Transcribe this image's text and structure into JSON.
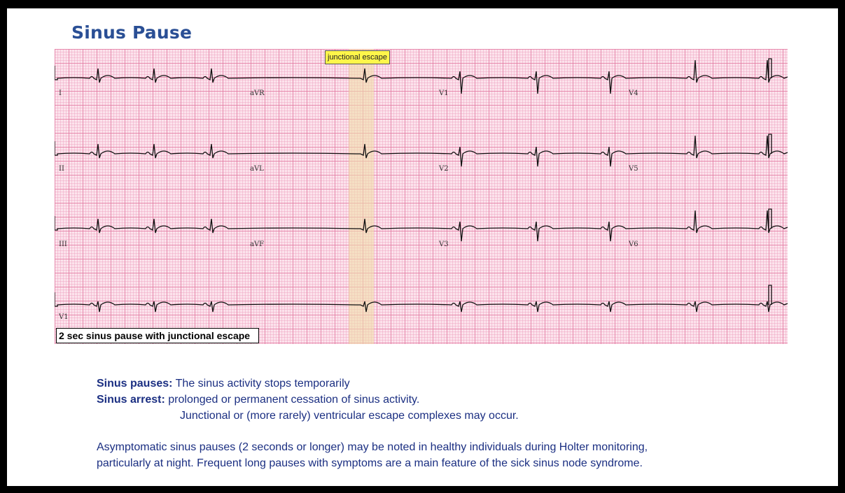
{
  "title": "Sinus Pause",
  "ecg": {
    "callout": "junctional escape",
    "caption": "2 sec sinus pause with junctional escape",
    "leads": {
      "row1": [
        "I",
        "aVR",
        "V1",
        "V4"
      ],
      "row2": [
        "II",
        "aVL",
        "V2",
        "V5"
      ],
      "row3": [
        "III",
        "aVF",
        "V3",
        "V6"
      ],
      "row4": [
        "V1"
      ]
    }
  },
  "text": {
    "pauses_label": "Sinus pauses:",
    "pauses_desc": " The sinus activity stops temporarily",
    "arrest_label": "Sinus arrest:",
    "arrest_desc": " prolonged or permanent cessation of sinus activity.",
    "arrest_desc2": "Junctional or (more rarely) ventricular escape complexes may occur.",
    "para_line1": "Asymptomatic sinus pauses (2 seconds or longer) may be noted in healthy individuals during Holter monitoring,",
    "para_line2": "particularly at night. Frequent long pauses with symptoms are a main feature of the sick sinus node syndrome."
  }
}
